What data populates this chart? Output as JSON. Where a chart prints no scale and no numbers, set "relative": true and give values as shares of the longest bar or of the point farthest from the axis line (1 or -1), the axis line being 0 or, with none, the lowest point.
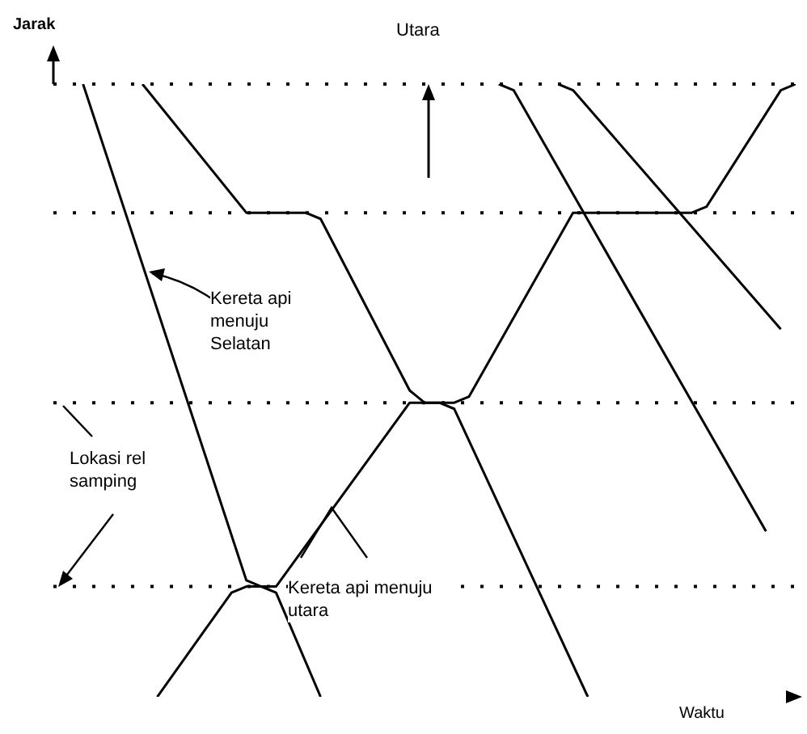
{
  "chart_data": {
    "type": "line",
    "relative": true,
    "xlabel": "Waktu",
    "ylabel": "Jarak",
    "marker": "none",
    "line_style": "solid",
    "categories": [
      null,
      null,
      null,
      null,
      null,
      null,
      null,
      null,
      null,
      null,
      null,
      null,
      null,
      null,
      null,
      null,
      null,
      null,
      null,
      null,
      null,
      null,
      null,
      null,
      null,
      null,
      null,
      null,
      null,
      null,
      null,
      null,
      null,
      null,
      null,
      null,
      null,
      null,
      null,
      null,
      null,
      null,
      null,
      null,
      null,
      null,
      null,
      null,
      null,
      null,
      null
    ],
    "series": [
      {
        "color": "#000000",
        "values": [
          null,
          null,
          1,
          null,
          null,
          null,
          null,
          null,
          null,
          null,
          null,
          null,
          null,
          0.19,
          0.18,
          0.17,
          null,
          null,
          0,
          null,
          null,
          null,
          null,
          null,
          null,
          null,
          null,
          null,
          null,
          null,
          null,
          null,
          null,
          null,
          null,
          null,
          null,
          null,
          null,
          null,
          null,
          null,
          null,
          null,
          null,
          null,
          null,
          null,
          null,
          null,
          null
        ]
      },
      {
        "color": "#000000",
        "values": [
          null,
          null,
          null,
          null,
          null,
          null,
          1,
          null,
          null,
          null,
          null,
          null,
          null,
          0.79,
          null,
          null,
          null,
          0.79,
          0.78,
          null,
          null,
          null,
          null,
          null,
          0.5,
          0.48,
          0.48,
          0.47,
          null,
          null,
          null,
          null,
          null,
          null,
          null,
          null,
          0,
          null,
          null,
          null,
          null,
          null,
          null,
          null,
          null,
          null,
          null,
          null,
          null,
          null,
          null
        ]
      },
      {
        "color": "#000000",
        "values": [
          null,
          null,
          null,
          null,
          null,
          null,
          null,
          0,
          null,
          null,
          null,
          null,
          0.17,
          0.18,
          null,
          0.18,
          null,
          null,
          null,
          null,
          null,
          null,
          null,
          null,
          0.48,
          null,
          null,
          0.48,
          0.49,
          null,
          null,
          null,
          null,
          null,
          null,
          0.79,
          null,
          null,
          null,
          null,
          null,
          null,
          null,
          0.79,
          0.8,
          null,
          null,
          null,
          null,
          0.99,
          1
        ]
      },
      {
        "color": "#000000",
        "values": [
          null,
          null,
          null,
          null,
          null,
          null,
          null,
          null,
          null,
          null,
          null,
          null,
          null,
          null,
          null,
          null,
          null,
          null,
          null,
          null,
          null,
          null,
          null,
          null,
          null,
          null,
          null,
          null,
          null,
          null,
          1,
          0.99,
          null,
          null,
          null,
          null,
          null,
          null,
          null,
          null,
          null,
          null,
          null,
          null,
          null,
          null,
          null,
          null,
          0.27,
          null,
          null
        ]
      },
      {
        "color": "#000000",
        "values": [
          null,
          null,
          null,
          null,
          null,
          null,
          null,
          null,
          null,
          null,
          null,
          null,
          null,
          null,
          null,
          null,
          null,
          null,
          null,
          null,
          null,
          null,
          null,
          null,
          null,
          null,
          null,
          null,
          null,
          null,
          null,
          null,
          null,
          null,
          1,
          0.99,
          null,
          null,
          null,
          null,
          null,
          null,
          null,
          null,
          null,
          null,
          null,
          null,
          null,
          0.6,
          null
        ]
      }
    ],
    "ref_lines": [
      {
        "axis": "y",
        "value": 1,
        "color": "#000000",
        "line_style": "dotted"
      },
      {
        "axis": "y",
        "value": 0.79,
        "color": "#000000",
        "line_style": "dotted"
      },
      {
        "axis": "y",
        "value": 0.48,
        "color": "#000000",
        "line_style": "dotted"
      },
      {
        "axis": "y",
        "value": 0.18,
        "color": "#000000",
        "line_style": "dotted"
      }
    ],
    "annotations": [
      "Utara",
      "Kereta api menuju Selatan",
      "Lokasi rel samping",
      "Kereta api menuju utara"
    ]
  }
}
